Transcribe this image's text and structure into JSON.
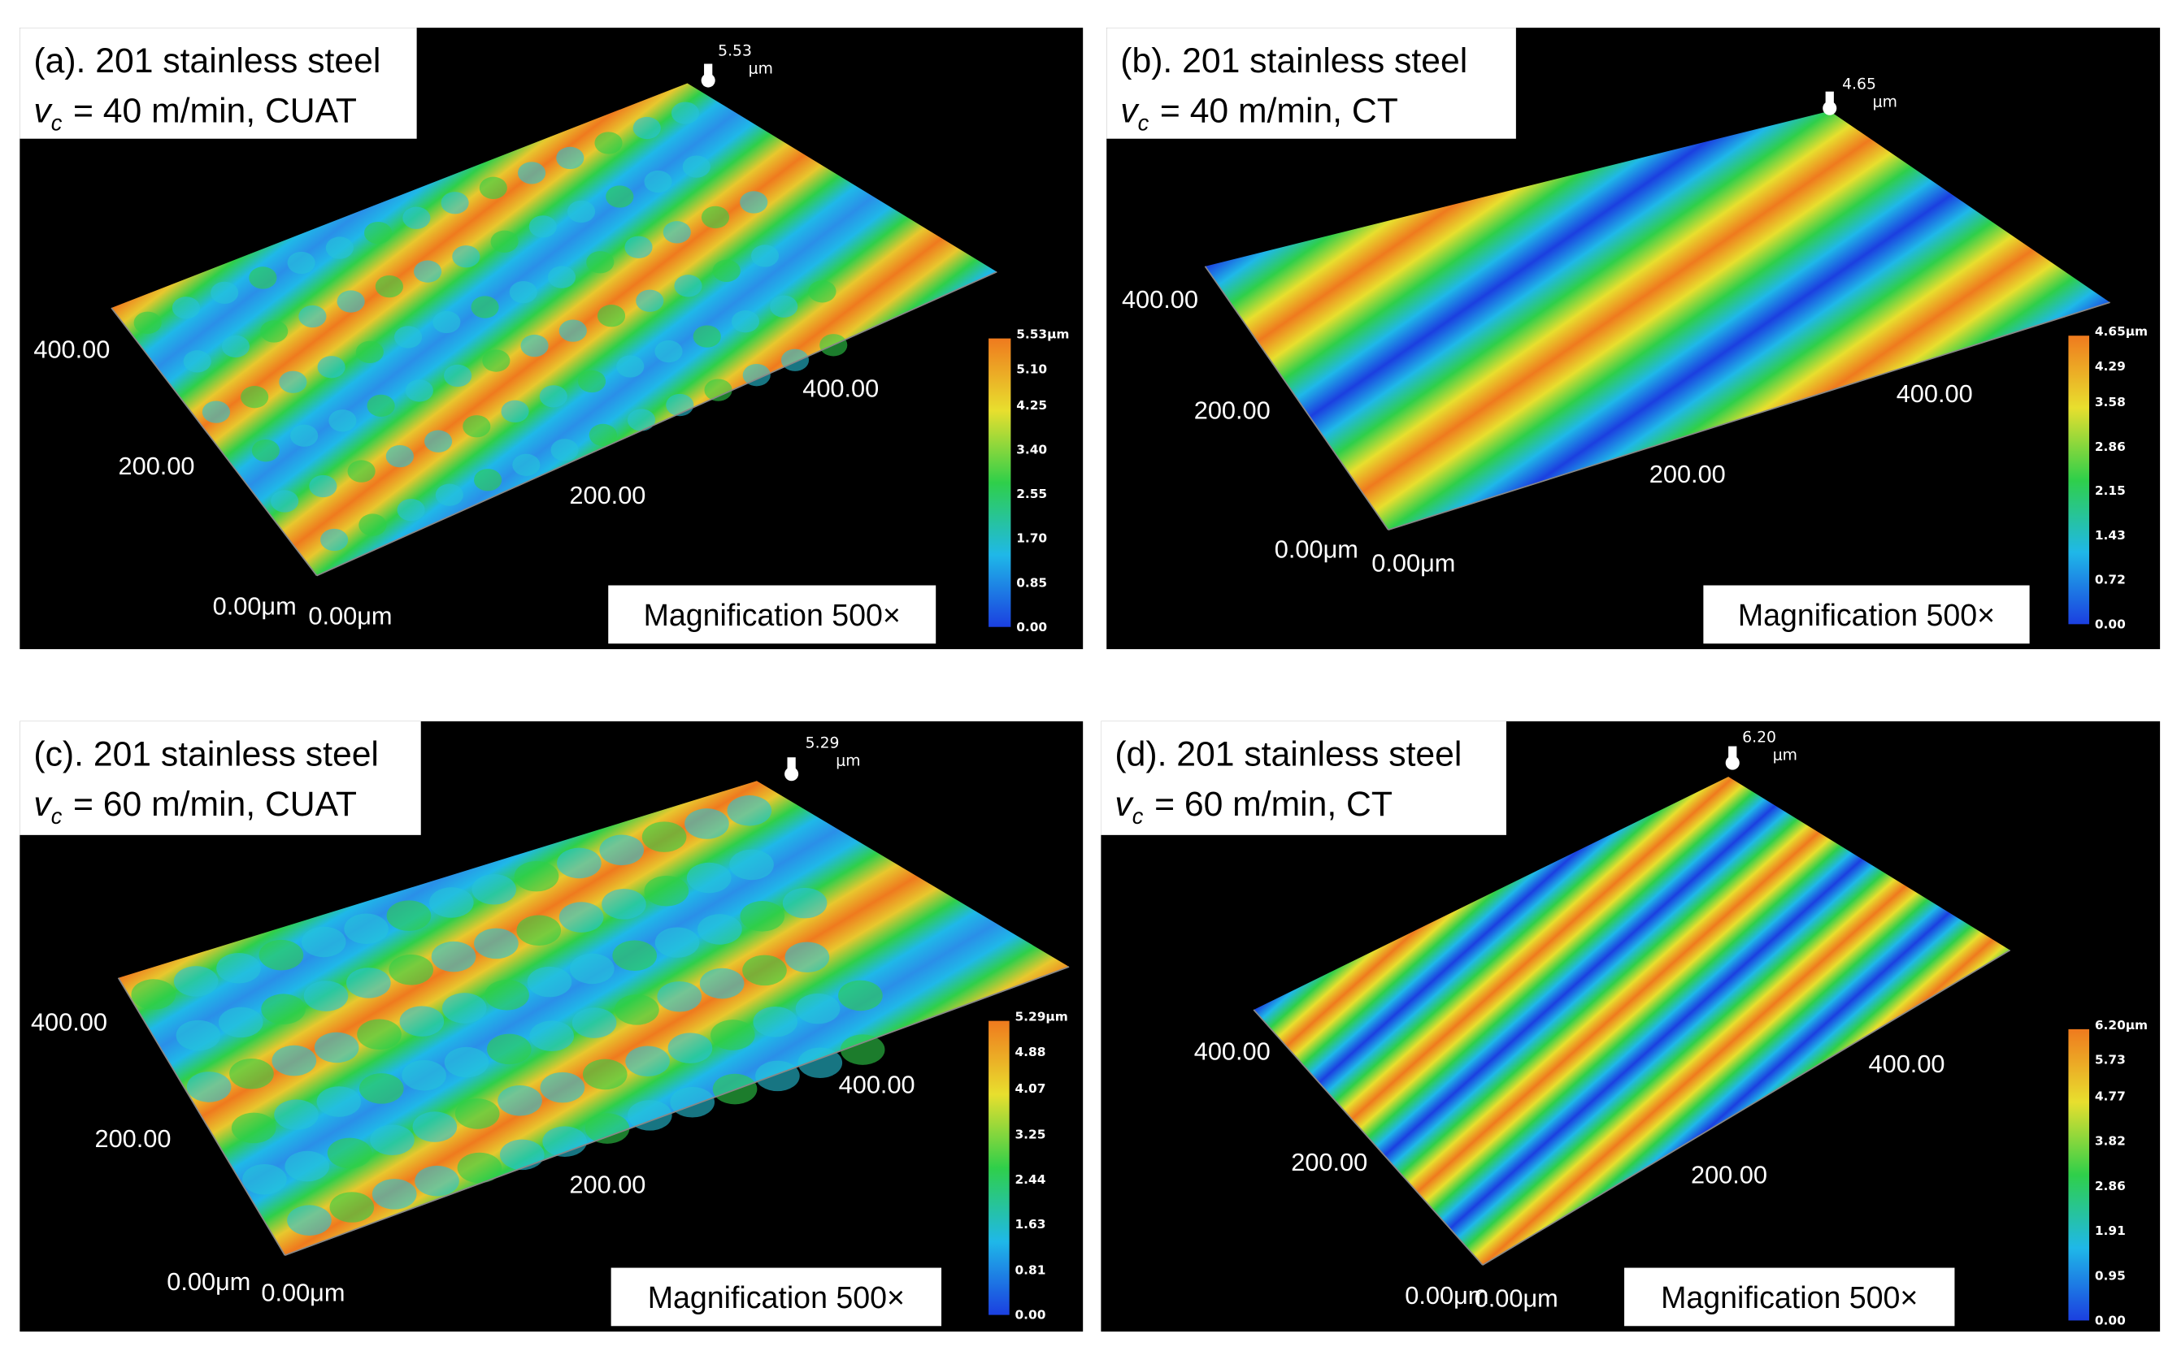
{
  "panels": [
    {
      "label": "(a). 201 stainless steel",
      "speed_symbol": "v",
      "speed_subscript": "c",
      "speed_text": "= 40 m/min, CUAT",
      "peak_value": "5.53",
      "peak_unit": "μm",
      "axis_labels": [
        "400.00",
        "200.00",
        "0.00μm",
        "0.00μm",
        "200.00",
        "400.00"
      ],
      "colorbar_labels": [
        "5.53μm",
        "5.10",
        "4.25",
        "3.40",
        "2.55",
        "1.70",
        "0.85",
        "0.00"
      ],
      "magnification": "Magnification 500×"
    },
    {
      "label": "(b). 201 stainless steel",
      "speed_symbol": "v",
      "speed_subscript": "c",
      "speed_text": "= 40 m/min, CT",
      "peak_value": "4.65",
      "peak_unit": "μm",
      "axis_labels": [
        "400.00",
        "200.00",
        "0.00μm",
        "0.00μm",
        "200.00",
        "400.00"
      ],
      "colorbar_labels": [
        "4.65μm",
        "4.29",
        "3.58",
        "2.86",
        "2.15",
        "1.43",
        "0.72",
        "0.00"
      ],
      "magnification": "Magnification 500×"
    },
    {
      "label": "(c). 201 stainless steel",
      "speed_symbol": "v",
      "speed_subscript": "c",
      "speed_text": "= 60 m/min, CUAT",
      "peak_value": "5.29",
      "peak_unit": "μm",
      "axis_labels": [
        "400.00",
        "200.00",
        "0.00μm",
        "0.00μm",
        "200.00",
        "400.00"
      ],
      "colorbar_labels": [
        "5.29μm",
        "4.88",
        "4.07",
        "3.25",
        "2.44",
        "1.63",
        "0.81",
        "0.00"
      ],
      "magnification": "Magnification 500×"
    },
    {
      "label": "(d). 201 stainless steel",
      "speed_symbol": "v",
      "speed_subscript": "c",
      "speed_text": "= 60 m/min, CT",
      "peak_value": "6.20",
      "peak_unit": "μm",
      "axis_labels": [
        "400.00",
        "200.00",
        "0.00μm",
        "0.00μm",
        "200.00",
        "400.00"
      ],
      "colorbar_labels": [
        "6.20μm",
        "5.73",
        "4.77",
        "3.82",
        "2.86",
        "1.91",
        "0.95",
        "0.00"
      ],
      "magnification": "Magnification 500×"
    }
  ]
}
